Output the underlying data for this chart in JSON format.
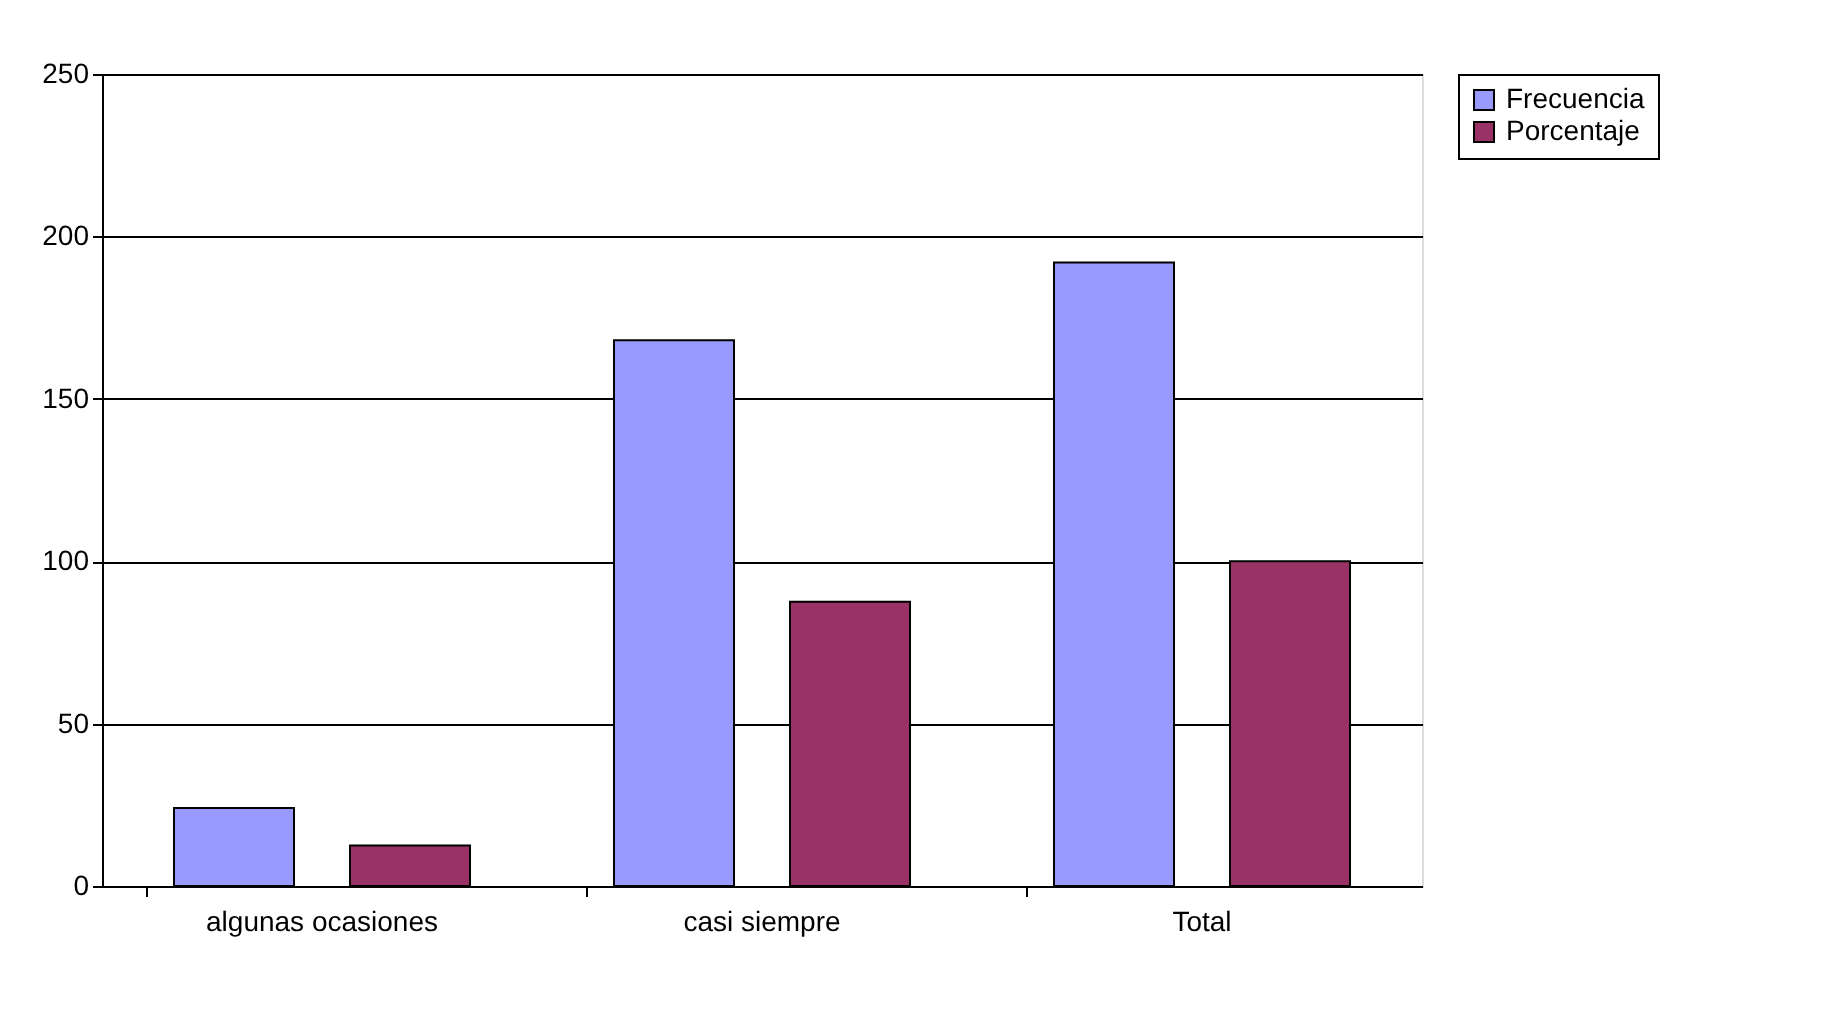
{
  "chart_data": {
    "type": "bar",
    "categories": [
      "algunas ocasiones",
      "casi siempre",
      "Total"
    ],
    "series": [
      {
        "name": "Frecuencia",
        "color": "#9999ff",
        "values": [
          24,
          168,
          192
        ]
      },
      {
        "name": "Porcentaje",
        "color": "#993366",
        "values": [
          12.5,
          87.5,
          100
        ]
      }
    ],
    "ylim": [
      0,
      250
    ],
    "yticks": [
      0,
      50,
      100,
      150,
      200,
      250
    ],
    "grid": "y",
    "legend": "right"
  }
}
